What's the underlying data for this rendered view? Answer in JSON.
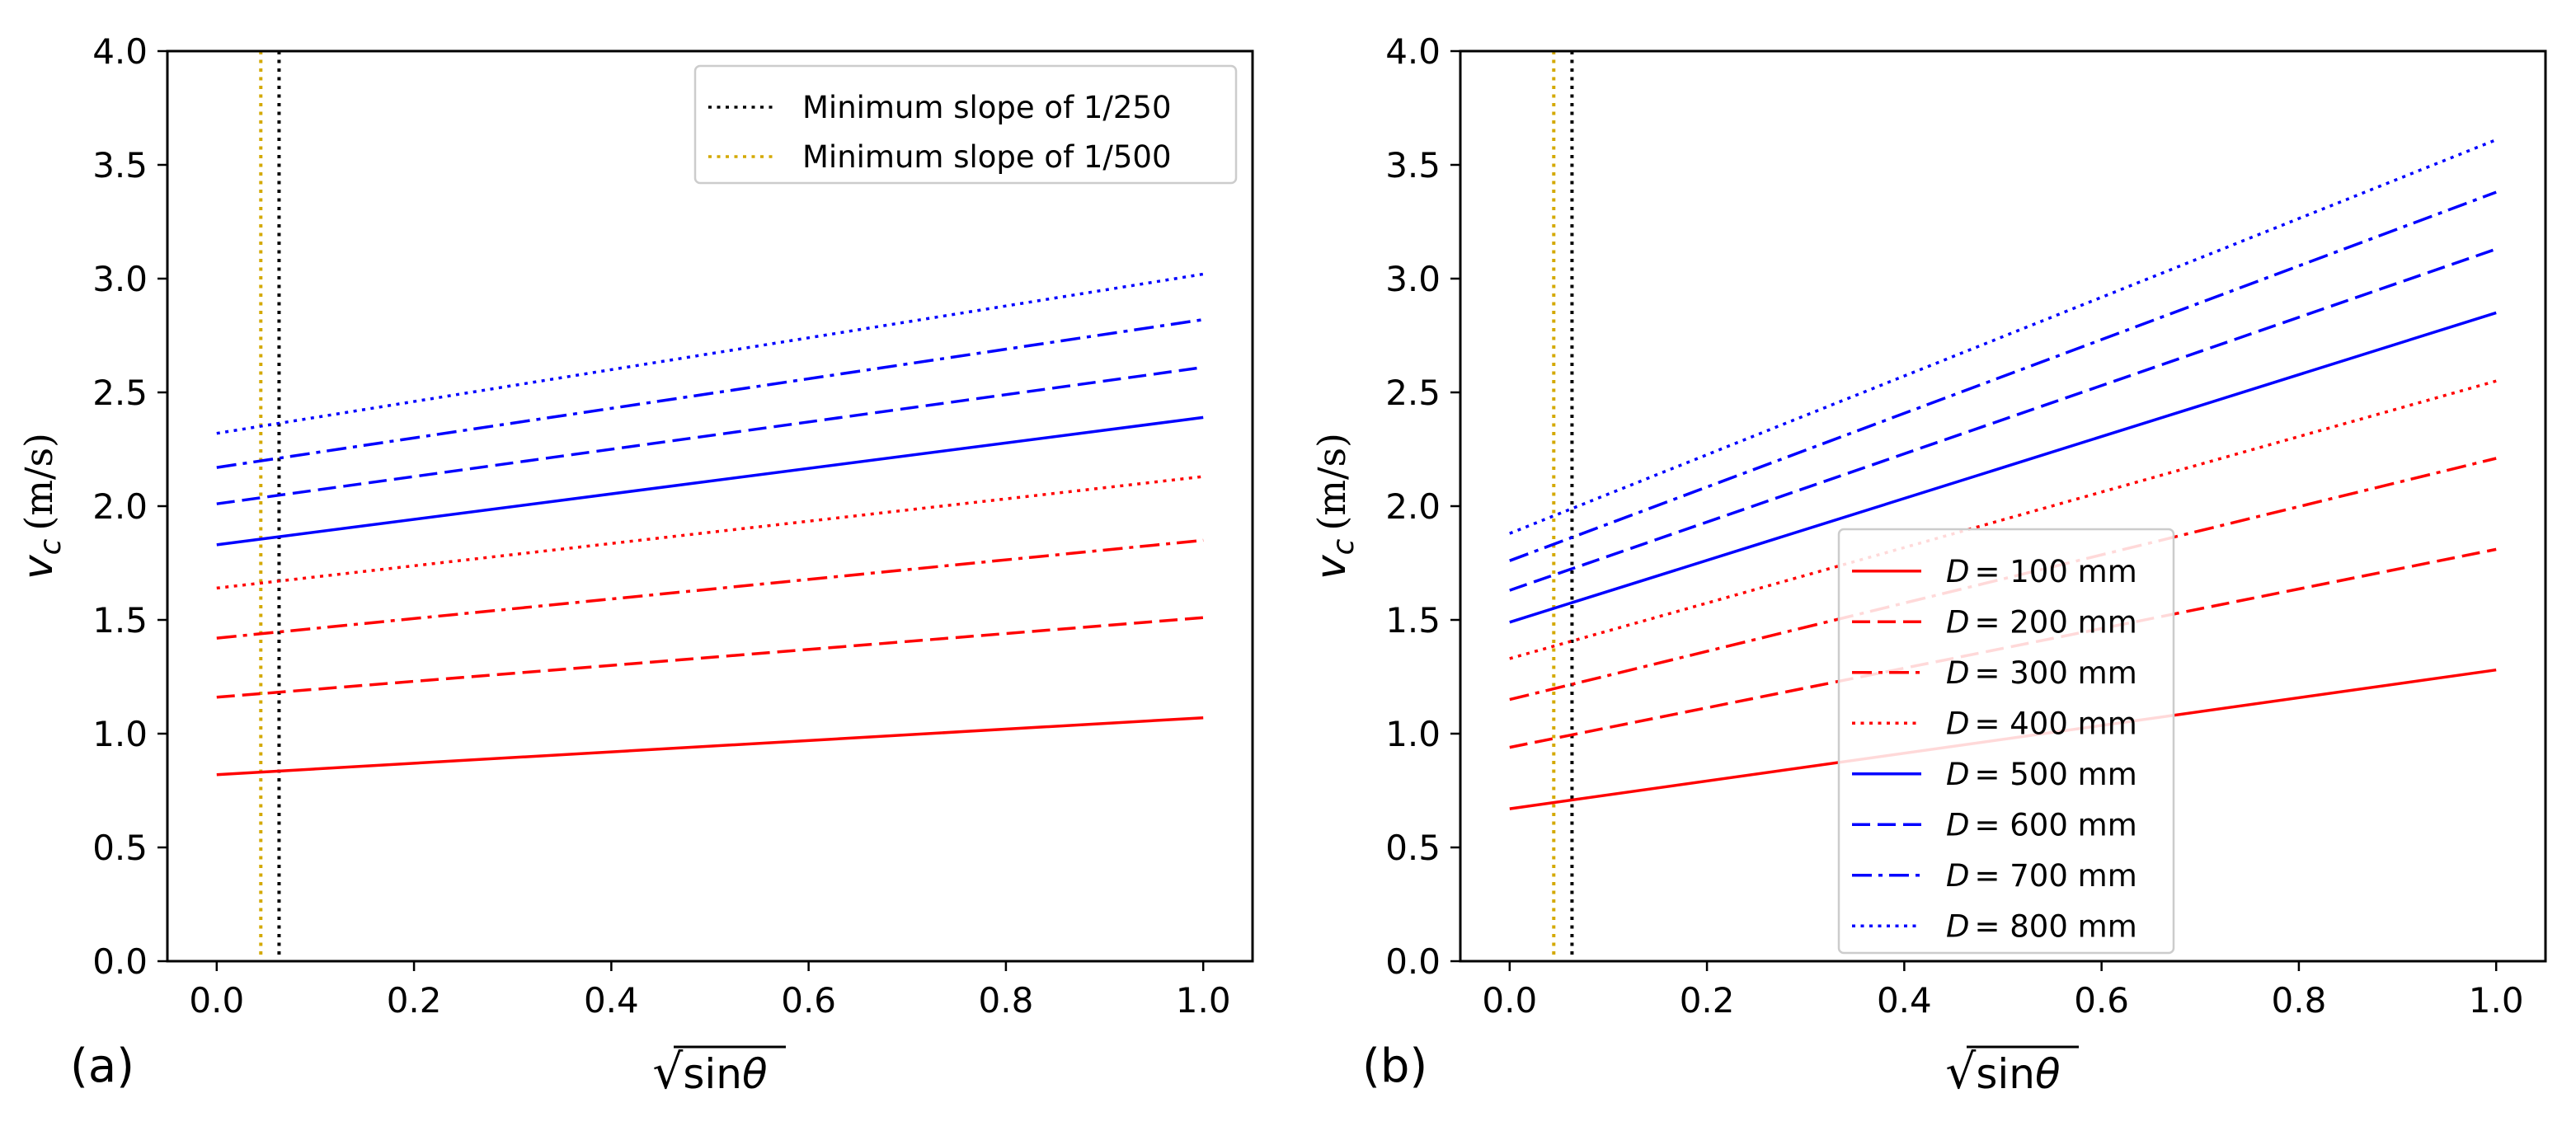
{
  "chart_data": [
    {
      "panel": "(a)",
      "type": "line",
      "title": "",
      "xlabel": "√sinθ",
      "xlabel_root": "√",
      "xlabel_func": "sin",
      "xlabel_var": "θ",
      "ylabel": "v_c (m/s)",
      "ylabel_var": "v",
      "ylabel_sub": "c",
      "ylabel_unit": "(m/s)",
      "xlim": [
        -0.05,
        1.05
      ],
      "ylim": [
        0,
        4
      ],
      "xticks": [
        "0.0",
        "0.2",
        "0.4",
        "0.6",
        "0.8",
        "1.0"
      ],
      "yticks": [
        "0.0",
        "0.5",
        "1.0",
        "1.5",
        "2.0",
        "2.5",
        "3.0",
        "3.5",
        "4.0"
      ],
      "legend_position": "top-right",
      "legend": [
        {
          "label": "Minimum slope of 1/250",
          "color": "#000000",
          "style": "dotted"
        },
        {
          "label": "Minimum slope of 1/500",
          "color": "#d4a900",
          "style": "dotted"
        }
      ],
      "vlines": [
        {
          "name": "Minimum slope of 1/250",
          "x": 0.0632,
          "color": "#000000",
          "style": "dotted"
        },
        {
          "name": "Minimum slope of 1/500",
          "x": 0.0447,
          "color": "#d4a900",
          "style": "dotted"
        }
      ],
      "series": [
        {
          "name": "D = 100 mm",
          "color": "#ff0000",
          "style": "solid",
          "x": [
            0,
            1
          ],
          "y": [
            0.82,
            1.07
          ]
        },
        {
          "name": "D = 200 mm",
          "color": "#ff0000",
          "style": "dashed",
          "x": [
            0,
            1
          ],
          "y": [
            1.16,
            1.51
          ]
        },
        {
          "name": "D = 300 mm",
          "color": "#ff0000",
          "style": "dashdot",
          "x": [
            0,
            1
          ],
          "y": [
            1.42,
            1.85
          ]
        },
        {
          "name": "D = 400 mm",
          "color": "#ff0000",
          "style": "dotted",
          "x": [
            0,
            1
          ],
          "y": [
            1.64,
            2.13
          ]
        },
        {
          "name": "D = 500 mm",
          "color": "#0000ff",
          "style": "solid",
          "x": [
            0,
            1
          ],
          "y": [
            1.83,
            2.39
          ]
        },
        {
          "name": "D = 600 mm",
          "color": "#0000ff",
          "style": "dashed",
          "x": [
            0,
            1
          ],
          "y": [
            2.01,
            2.61
          ]
        },
        {
          "name": "D = 700 mm",
          "color": "#0000ff",
          "style": "dashdot",
          "x": [
            0,
            1
          ],
          "y": [
            2.17,
            2.82
          ]
        },
        {
          "name": "D = 800 mm",
          "color": "#0000ff",
          "style": "dotted",
          "x": [
            0,
            1
          ],
          "y": [
            2.32,
            3.02
          ]
        }
      ]
    },
    {
      "panel": "(b)",
      "type": "line",
      "title": "",
      "xlabel": "√sinθ",
      "xlabel_root": "√",
      "xlabel_func": "sin",
      "xlabel_var": "θ",
      "ylabel": "v_c (m/s)",
      "ylabel_var": "v",
      "ylabel_sub": "c",
      "ylabel_unit": "(m/s)",
      "xlim": [
        -0.05,
        1.05
      ],
      "ylim": [
        0,
        4
      ],
      "xticks": [
        "0.0",
        "0.2",
        "0.4",
        "0.6",
        "0.8",
        "1.0"
      ],
      "yticks": [
        "0.0",
        "0.5",
        "1.0",
        "1.5",
        "2.0",
        "2.5",
        "3.0",
        "3.5",
        "4.0"
      ],
      "legend_position": "lower-center",
      "legend": [
        {
          "label": "D = 100 mm",
          "var": "D",
          "value": "= 100 mm",
          "color": "#ff0000",
          "style": "solid"
        },
        {
          "label": "D = 200 mm",
          "var": "D",
          "value": "= 200 mm",
          "color": "#ff0000",
          "style": "dashed"
        },
        {
          "label": "D = 300 mm",
          "var": "D",
          "value": "= 300 mm",
          "color": "#ff0000",
          "style": "dashdot"
        },
        {
          "label": "D = 400 mm",
          "var": "D",
          "value": "= 400 mm",
          "color": "#ff0000",
          "style": "dotted"
        },
        {
          "label": "D = 500 mm",
          "var": "D",
          "value": "= 500 mm",
          "color": "#0000ff",
          "style": "solid"
        },
        {
          "label": "D = 600 mm",
          "var": "D",
          "value": "= 600 mm",
          "color": "#0000ff",
          "style": "dashed"
        },
        {
          "label": "D = 700 mm",
          "var": "D",
          "value": "= 700 mm",
          "color": "#0000ff",
          "style": "dashdot"
        },
        {
          "label": "D = 800 mm",
          "var": "D",
          "value": "= 800 mm",
          "color": "#0000ff",
          "style": "dotted"
        }
      ],
      "vlines": [
        {
          "name": "Minimum slope of 1/250",
          "x": 0.0632,
          "color": "#000000",
          "style": "dotted"
        },
        {
          "name": "Minimum slope of 1/500",
          "x": 0.0447,
          "color": "#d4a900",
          "style": "dotted"
        }
      ],
      "series": [
        {
          "name": "D = 100 mm",
          "color": "#ff0000",
          "style": "solid",
          "x": [
            0,
            1
          ],
          "y": [
            0.67,
            1.28
          ]
        },
        {
          "name": "D = 200 mm",
          "color": "#ff0000",
          "style": "dashed",
          "x": [
            0,
            1
          ],
          "y": [
            0.94,
            1.81
          ]
        },
        {
          "name": "D = 300 mm",
          "color": "#ff0000",
          "style": "dashdot",
          "x": [
            0,
            1
          ],
          "y": [
            1.15,
            2.21
          ]
        },
        {
          "name": "D = 400 mm",
          "color": "#ff0000",
          "style": "dotted",
          "x": [
            0,
            1
          ],
          "y": [
            1.33,
            2.55
          ]
        },
        {
          "name": "D = 500 mm",
          "color": "#0000ff",
          "style": "solid",
          "x": [
            0,
            1
          ],
          "y": [
            1.49,
            2.85
          ]
        },
        {
          "name": "D = 600 mm",
          "color": "#0000ff",
          "style": "dashed",
          "x": [
            0,
            1
          ],
          "y": [
            1.63,
            3.13
          ]
        },
        {
          "name": "D = 700 mm",
          "color": "#0000ff",
          "style": "dashdot",
          "x": [
            0,
            1
          ],
          "y": [
            1.76,
            3.38
          ]
        },
        {
          "name": "D = 800 mm",
          "color": "#0000ff",
          "style": "dotted",
          "x": [
            0,
            1
          ],
          "y": [
            1.88,
            3.61
          ]
        }
      ]
    }
  ]
}
